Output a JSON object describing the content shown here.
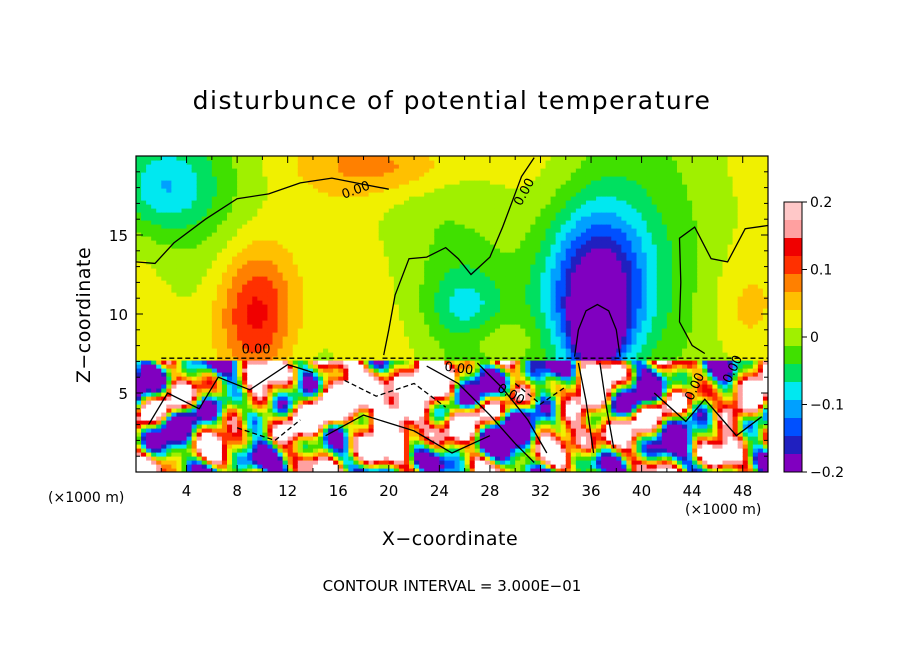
{
  "chart_data": {
    "type": "heatmap",
    "title": "disturbunce of potential temperature",
    "xlabel": "X−coordinate",
    "ylabel": "Z−coordinate",
    "x_unit": "(×1000 m)",
    "footnote": "CONTOUR INTERVAL = 3.000E−01",
    "x_range": [
      0,
      50
    ],
    "y_range": [
      0,
      20
    ],
    "x_ticks": [
      4,
      8,
      12,
      16,
      20,
      24,
      28,
      32,
      36,
      40,
      44,
      48
    ],
    "y_ticks": [
      5,
      10,
      15
    ],
    "colorbar": {
      "range": [
        -0.2,
        0.2
      ],
      "tick_values": [
        0.2,
        0.1,
        0,
        -0.1,
        -0.2
      ],
      "tick_labels": [
        "0.2",
        "0.1",
        "0",
        "−0.1",
        "−0.2"
      ]
    },
    "contour_labels": [
      "0.00",
      "0.00",
      "0.00",
      "0.00",
      "0.00",
      "0.00",
      "0.00"
    ],
    "colors": {
      "colormap": [
        "#8000c0",
        "#2020c0",
        "#0050ff",
        "#00a0ff",
        "#00e8f0",
        "#00e060",
        "#40e000",
        "#a0f000",
        "#f0f000",
        "#ffc000",
        "#ff8000",
        "#ff3000",
        "#f00000",
        "#ffa0a0"
      ],
      "saturated": "#ffffff",
      "contour": "#000000"
    }
  }
}
